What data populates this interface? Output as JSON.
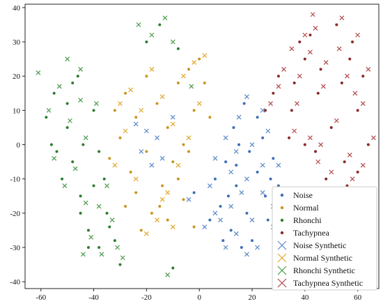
{
  "chart_data": {
    "type": "scatter",
    "title": "",
    "xlabel": "",
    "ylabel": "",
    "xlim": [
      -66,
      68
    ],
    "ylim": [
      -42,
      41
    ],
    "xticks": [
      -60,
      -40,
      -20,
      0,
      20,
      40,
      60
    ],
    "yticks": [
      -40,
      -30,
      -20,
      -10,
      0,
      10,
      20,
      30,
      40
    ],
    "grid": false,
    "legend_position": "bottom-right",
    "legend": [
      {
        "name": "Noise",
        "marker": "dot",
        "color": "#3b6fb6"
      },
      {
        "name": "Normal",
        "marker": "dot",
        "color": "#c8961e"
      },
      {
        "name": "Rhonchi",
        "marker": "dot",
        "color": "#2e7d2e"
      },
      {
        "name": "Tachypnea",
        "marker": "dot",
        "color": "#8b2a2a"
      },
      {
        "name": "Noise Synthetic",
        "marker": "x",
        "color": "#5a88c8"
      },
      {
        "name": "Normal Synthetic",
        "marker": "x",
        "color": "#e0a82a"
      },
      {
        "name": "Rhonchi Synthetic",
        "marker": "x",
        "color": "#4a9a4a"
      },
      {
        "name": "Tachypnea Synthetic",
        "marker": "x",
        "color": "#b04848"
      }
    ],
    "series": [
      {
        "label": "Noise",
        "marker": "dot",
        "color": "#3b6fb6",
        "points": [
          [
            10,
            -5
          ],
          [
            14,
            -12
          ],
          [
            18,
            -20
          ],
          [
            22,
            -8
          ],
          [
            15,
            0
          ],
          [
            25,
            -15
          ],
          [
            12,
            -25
          ],
          [
            20,
            -28
          ],
          [
            8,
            -18
          ],
          [
            28,
            -4
          ],
          [
            30,
            -12
          ],
          [
            16,
            -30
          ],
          [
            6,
            -10
          ],
          [
            24,
            2
          ],
          [
            19,
            -2
          ],
          [
            13,
            5
          ],
          [
            26,
            -22
          ],
          [
            9,
            -28
          ],
          [
            4,
            -22
          ],
          [
            -2,
            -14
          ],
          [
            32,
            -20
          ],
          [
            22,
            8
          ],
          [
            17,
            12
          ],
          [
            11,
            -15
          ],
          [
            27,
            -10
          ],
          [
            14,
            -6
          ]
        ]
      },
      {
        "label": "Normal",
        "marker": "dot",
        "color": "#c8961e",
        "points": [
          [
            -28,
            15
          ],
          [
            -24,
            8
          ],
          [
            -20,
            20
          ],
          [
            -16,
            12
          ],
          [
            -12,
            5
          ],
          [
            -8,
            18
          ],
          [
            -4,
            22
          ],
          [
            -2,
            10
          ],
          [
            0,
            25
          ],
          [
            -6,
            0
          ],
          [
            -10,
            -5
          ],
          [
            -14,
            -12
          ],
          [
            -18,
            -20
          ],
          [
            -22,
            -25
          ],
          [
            -26,
            -8
          ],
          [
            -30,
            2
          ],
          [
            -32,
            10
          ],
          [
            -34,
            -4
          ],
          [
            -15,
            -18
          ],
          [
            -12,
            -22
          ],
          [
            -8,
            -10
          ],
          [
            -4,
            -2
          ],
          [
            -2,
            -24
          ],
          [
            2,
            18
          ],
          [
            4,
            8
          ],
          [
            -6,
            -16
          ],
          [
            -24,
            -14
          ],
          [
            -20,
            -2
          ],
          [
            -28,
            -18
          ]
        ]
      },
      {
        "label": "Rhonchi",
        "marker": "dot",
        "color": "#2e7d2e",
        "points": [
          [
            -55,
            15
          ],
          [
            -50,
            5
          ],
          [
            -48,
            -5
          ],
          [
            -45,
            -15
          ],
          [
            -42,
            -25
          ],
          [
            -40,
            10
          ],
          [
            -38,
            -30
          ],
          [
            -35,
            -20
          ],
          [
            -52,
            -10
          ],
          [
            -58,
            8
          ],
          [
            -46,
            20
          ],
          [
            -44,
            0
          ],
          [
            -36,
            -10
          ],
          [
            -32,
            -28
          ],
          [
            -30,
            -35
          ],
          [
            -20,
            30
          ],
          [
            -15,
            35
          ],
          [
            -10,
            -36
          ],
          [
            -54,
            -2
          ],
          [
            -48,
            18
          ],
          [
            -40,
            -12
          ],
          [
            -34,
            -24
          ],
          [
            -42,
            -30
          ],
          [
            -56,
            0
          ],
          [
            -50,
            12
          ],
          [
            -8,
            28
          ],
          [
            -45,
            -20
          ],
          [
            -38,
            -2
          ]
        ]
      },
      {
        "label": "Tachypnea",
        "marker": "dot",
        "color": "#8b2a2a",
        "points": [
          [
            30,
            20
          ],
          [
            35,
            10
          ],
          [
            40,
            25
          ],
          [
            45,
            15
          ],
          [
            50,
            5
          ],
          [
            55,
            -5
          ],
          [
            60,
            10
          ],
          [
            62,
            20
          ],
          [
            58,
            30
          ],
          [
            52,
            35
          ],
          [
            42,
            32
          ],
          [
            38,
            30
          ],
          [
            48,
            -10
          ],
          [
            44,
            -2
          ],
          [
            56,
            -12
          ],
          [
            64,
            0
          ],
          [
            34,
            2
          ],
          [
            28,
            15
          ],
          [
            46,
            22
          ],
          [
            54,
            18
          ],
          [
            40,
            0
          ],
          [
            50,
            -18
          ],
          [
            60,
            -8
          ],
          [
            36,
            18
          ],
          [
            25,
            10
          ],
          [
            57,
            25
          ]
        ]
      },
      {
        "label": "Noise Synthetic",
        "marker": "x",
        "color": "#5a88c8",
        "points": [
          [
            12,
            -8
          ],
          [
            16,
            -14
          ],
          [
            20,
            -22
          ],
          [
            24,
            -6
          ],
          [
            10,
            2
          ],
          [
            28,
            -18
          ],
          [
            14,
            -26
          ],
          [
            22,
            -30
          ],
          [
            6,
            -20
          ],
          [
            30,
            -6
          ],
          [
            32,
            -14
          ],
          [
            18,
            -32
          ],
          [
            4,
            -12
          ],
          [
            26,
            4
          ],
          [
            20,
            0
          ],
          [
            15,
            8
          ],
          [
            28,
            -24
          ],
          [
            10,
            -30
          ],
          [
            2,
            -24
          ],
          [
            -4,
            -16
          ],
          [
            34,
            -22
          ],
          [
            24,
            10
          ],
          [
            18,
            14
          ],
          [
            12,
            -18
          ],
          [
            -20,
            4
          ],
          [
            -22,
            -2
          ],
          [
            -16,
            2
          ],
          [
            -18,
            -6
          ],
          [
            -24,
            6
          ],
          [
            -14,
            -4
          ],
          [
            8,
            -22
          ],
          [
            14,
            -2
          ],
          [
            36,
            -28
          ],
          [
            6,
            -4
          ],
          [
            18,
            -10
          ],
          [
            24,
            -14
          ],
          [
            -10,
            8
          ]
        ]
      },
      {
        "label": "Normal Synthetic",
        "marker": "x",
        "color": "#e0a82a",
        "points": [
          [
            -26,
            16
          ],
          [
            -22,
            10
          ],
          [
            -18,
            22
          ],
          [
            -14,
            14
          ],
          [
            -10,
            6
          ],
          [
            -6,
            20
          ],
          [
            -2,
            24
          ],
          [
            0,
            12
          ],
          [
            2,
            26
          ],
          [
            -4,
            2
          ],
          [
            -8,
            -6
          ],
          [
            -12,
            -14
          ],
          [
            -16,
            -22
          ],
          [
            -20,
            -26
          ],
          [
            -24,
            -10
          ],
          [
            -28,
            4
          ],
          [
            -30,
            12
          ],
          [
            -32,
            -6
          ],
          [
            -14,
            -16
          ],
          [
            -10,
            -24
          ]
        ]
      },
      {
        "label": "Rhonchi Synthetic",
        "marker": "x",
        "color": "#4a9a4a",
        "points": [
          [
            -53,
            17
          ],
          [
            -49,
            7
          ],
          [
            -47,
            -7
          ],
          [
            -43,
            -17
          ],
          [
            -41,
            -27
          ],
          [
            -39,
            12
          ],
          [
            -37,
            -32
          ],
          [
            -33,
            -22
          ],
          [
            -51,
            -12
          ],
          [
            -57,
            10
          ],
          [
            -45,
            22
          ],
          [
            -43,
            2
          ],
          [
            -35,
            -12
          ],
          [
            -31,
            -30
          ],
          [
            -29,
            -33
          ],
          [
            -18,
            32
          ],
          [
            -13,
            37
          ],
          [
            -12,
            -38
          ],
          [
            -55,
            -4
          ],
          [
            -61,
            21
          ],
          [
            -50,
            25
          ],
          [
            -38,
            -18
          ],
          [
            -44,
            -32
          ],
          [
            -23,
            35
          ],
          [
            -10,
            30
          ],
          [
            -3,
            17
          ],
          [
            -45,
            13
          ]
        ]
      },
      {
        "label": "Tachypnea Synthetic",
        "marker": "x",
        "color": "#b04848",
        "points": [
          [
            32,
            22
          ],
          [
            37,
            12
          ],
          [
            42,
            27
          ],
          [
            47,
            17
          ],
          [
            52,
            7
          ],
          [
            57,
            -3
          ],
          [
            62,
            12
          ],
          [
            64,
            22
          ],
          [
            60,
            32
          ],
          [
            54,
            37
          ],
          [
            44,
            34
          ],
          [
            40,
            32
          ],
          [
            50,
            -8
          ],
          [
            46,
            0
          ],
          [
            58,
            -10
          ],
          [
            66,
            2
          ],
          [
            36,
            4
          ],
          [
            30,
            17
          ],
          [
            48,
            24
          ],
          [
            56,
            20
          ],
          [
            42,
            2
          ],
          [
            52,
            -16
          ],
          [
            62,
            -6
          ],
          [
            38,
            20
          ],
          [
            27,
            12
          ],
          [
            43,
            38
          ],
          [
            35,
            28
          ],
          [
            59,
            15
          ],
          [
            45,
            -5
          ],
          [
            53,
            28
          ]
        ]
      }
    ]
  }
}
